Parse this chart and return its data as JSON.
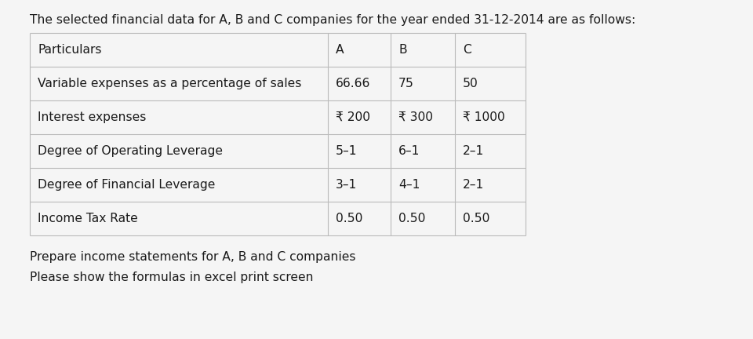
{
  "title": "The selected financial data for A, B and C companies for the year ended 31-12-2014 are as follows:",
  "col_headers": [
    "Particulars",
    "A",
    "B",
    "C"
  ],
  "rows": [
    [
      "Variable expenses as a percentage of sales",
      "66.66",
      "75",
      "50"
    ],
    [
      "Interest expenses",
      "₹ 200",
      "₹ 300",
      "₹ 1000"
    ],
    [
      "Degree of Operating Leverage",
      "5–1",
      "6–1",
      "2–1"
    ],
    [
      "Degree of Financial Leverage",
      "3–1",
      "4–1",
      "2–1"
    ],
    [
      "Income Tax Rate",
      "0.50",
      "0.50",
      "0.50"
    ]
  ],
  "footer_lines": [
    "Prepare income statements for A, B and C companies",
    "Please show the formulas in excel print screen"
  ],
  "bg_color": "#f5f5f5",
  "text_color": "#1a1a1a",
  "grid_color": "#bbbbbb",
  "title_fontsize": 11.2,
  "cell_fontsize": 11.2,
  "footer_fontsize": 11.2,
  "fig_width": 9.6,
  "fig_height": 4.32,
  "dpi": 100
}
